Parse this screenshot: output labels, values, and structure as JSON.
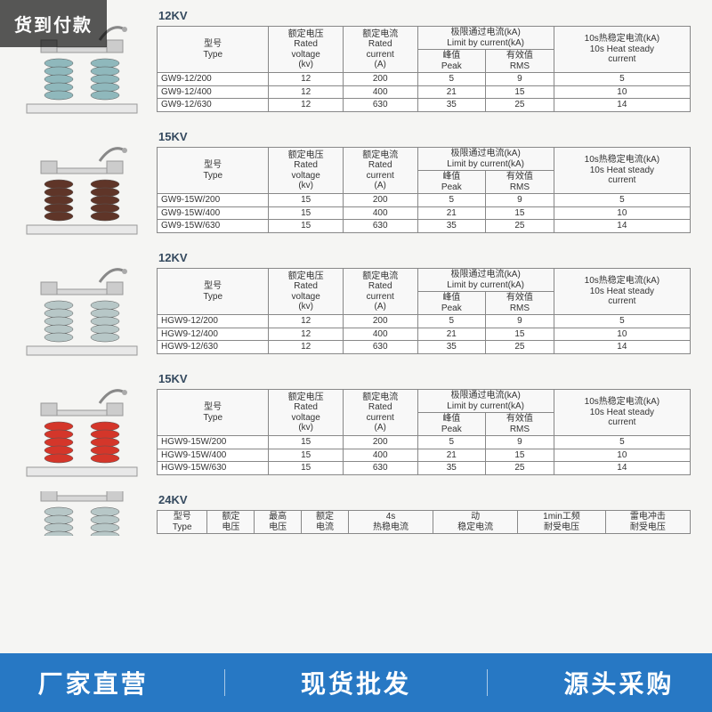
{
  "badges": {
    "topleft": "货到付款"
  },
  "footer": {
    "a": "厂家直营",
    "b": "现货批发",
    "c": "源头采购"
  },
  "products": [
    {
      "title": "12KV",
      "insulator_color": "#8fb8bc",
      "columns": [
        "型号\nType",
        "额定电压\nRated\nvoltage\n(kv)",
        "额定电流\nRated\ncurrent\n(A)",
        "极限通过电流(kA)\nLimit by current(kA)",
        "10s热稳定电流(kA)\n10s Heat steady\ncurrent"
      ],
      "subcolumns": [
        "峰值\nPeak",
        "有效值\nRMS"
      ],
      "rows": [
        [
          "GW9-12/200",
          "12",
          "200",
          "5",
          "9",
          "5"
        ],
        [
          "GW9-12/400",
          "12",
          "400",
          "21",
          "15",
          "10"
        ],
        [
          "GW9-12/630",
          "12",
          "630",
          "35",
          "25",
          "14"
        ]
      ]
    },
    {
      "title": "15KV",
      "insulator_color": "#5f3528",
      "columns": [
        "型号\nType",
        "额定电压\nRated\nvoltage\n(kv)",
        "额定电流\nRated\ncurrent\n(A)",
        "极限通过电流(kA)\nLimit by current(kA)",
        "10s热稳定电流(kA)\n10s Heat steady\ncurrent"
      ],
      "subcolumns": [
        "峰值\nPeak",
        "有效值\nRMS"
      ],
      "rows": [
        [
          "GW9-15W/200",
          "15",
          "200",
          "5",
          "9",
          "5"
        ],
        [
          "GW9-15W/400",
          "15",
          "400",
          "21",
          "15",
          "10"
        ],
        [
          "GW9-15W/630",
          "15",
          "630",
          "35",
          "25",
          "14"
        ]
      ]
    },
    {
      "title": "12KV",
      "insulator_color": "#b7c7c7",
      "columns": [
        "型号\nType",
        "额定电压\nRated\nvoltage\n(kv)",
        "额定电流\nRated\ncurrent\n(A)",
        "极限通过电流(kA)\nLimit by current(kA)",
        "10s热稳定电流(kA)\n10s Heat steady\ncurrent"
      ],
      "subcolumns": [
        "峰值\nPeak",
        "有效值\nRMS"
      ],
      "rows": [
        [
          "HGW9-12/200",
          "12",
          "200",
          "5",
          "9",
          "5"
        ],
        [
          "HGW9-12/400",
          "12",
          "400",
          "21",
          "15",
          "10"
        ],
        [
          "HGW9-12/630",
          "12",
          "630",
          "35",
          "25",
          "14"
        ]
      ]
    },
    {
      "title": "15KV",
      "insulator_color": "#d4362a",
      "columns": [
        "型号\nType",
        "额定电压\nRated\nvoltage\n(kv)",
        "额定电流\nRated\ncurrent\n(A)",
        "极限通过电流(kA)\nLimit by current(kA)",
        "10s热稳定电流(kA)\n10s Heat steady\ncurrent"
      ],
      "subcolumns": [
        "峰值\nPeak",
        "有效值\nRMS"
      ],
      "rows": [
        [
          "HGW9-15W/200",
          "15",
          "200",
          "5",
          "9",
          "5"
        ],
        [
          "HGW9-15W/400",
          "15",
          "400",
          "21",
          "15",
          "10"
        ],
        [
          "HGW9-15W/630",
          "15",
          "630",
          "35",
          "25",
          "14"
        ]
      ]
    }
  ],
  "partial": {
    "title": "24KV",
    "insulator_color": "#b7c7c7",
    "headers": [
      "型号\nType",
      "额定\n电压",
      "最高\n电压",
      "额定\n电流",
      "4s\n热稳电流",
      "动\n稳定电流",
      "1min工频\n耐受电压",
      "雷电冲击\n耐受电压"
    ]
  },
  "styling": {
    "page_bg": "#f5f5f3",
    "table_border": "#888888",
    "title_color": "#34495e",
    "footer_bg": "#2778c4",
    "footer_color": "#ffffff",
    "badge_bg": "rgba(0,0,0,0.65)"
  }
}
